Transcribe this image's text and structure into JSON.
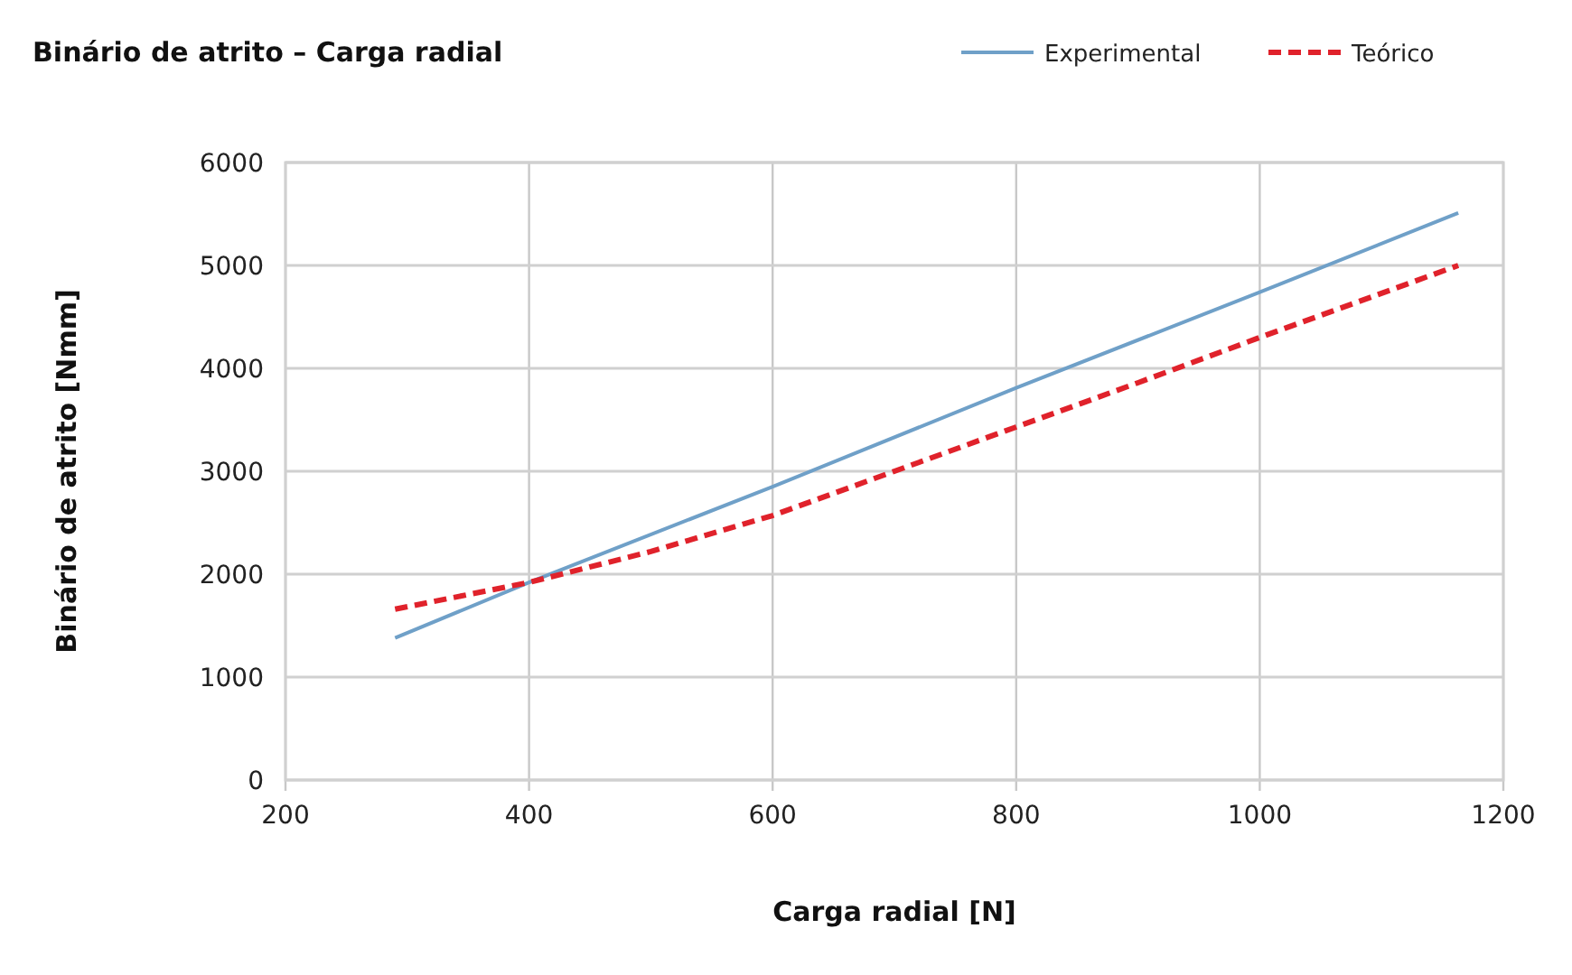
{
  "chart_data": {
    "type": "line",
    "title": "Binário de atrito – Carga radial",
    "xlabel": "Carga radial [N]",
    "ylabel": "Binário de atrito [Nmm]",
    "xlim": [
      200,
      1200
    ],
    "xticks": [
      200,
      400,
      600,
      800,
      1000,
      1200
    ],
    "ylim": [
      0,
      6000
    ],
    "yticks": [
      0,
      1000,
      2000,
      3000,
      4000,
      5000,
      6000
    ],
    "grid": true,
    "legend": "top right",
    "series": [
      {
        "name": "Experimental",
        "color": "#6fa0c8",
        "line_style": "solid",
        "x": [
          290,
          400,
          600,
          800,
          1000,
          1163
        ],
        "values": [
          1380,
          1920,
          2850,
          3810,
          4740,
          5510
        ]
      },
      {
        "name": "Teórico",
        "color": "#e0222b",
        "line_style": "dashed",
        "x": [
          290,
          400,
          500,
          600,
          700,
          800,
          900,
          1000,
          1163
        ],
        "values": [
          1660,
          1920,
          2220,
          2570,
          3000,
          3430,
          3860,
          4300,
          5000
        ]
      }
    ]
  }
}
